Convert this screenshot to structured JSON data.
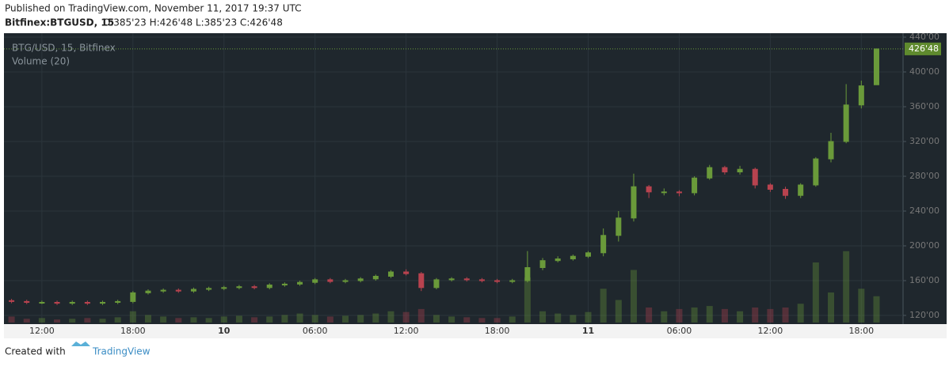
{
  "header": {
    "published": "Published on TradingView.com, November 11, 2017 19:37 UTC",
    "symbol": "Bitfinex:BTGUSD, 15",
    "ohlc": "O:385'23 H:426'48 L:385'23 C:426'48"
  },
  "chart_data": {
    "type": "candlestick",
    "title": "BTG/USD, 15, Bitfinex",
    "price_label": "426'48",
    "up_color": "#6a9a3a",
    "down_color": "#b8434f",
    "x": [
      10,
      11,
      12,
      13,
      14,
      15,
      16,
      17,
      18,
      19,
      20,
      21,
      22,
      23,
      24,
      25,
      26,
      27,
      28,
      29,
      30,
      31,
      32,
      33,
      34,
      35,
      36,
      37,
      38,
      39,
      40,
      41,
      42,
      43,
      44,
      45,
      46,
      47,
      48,
      49,
      50,
      51,
      52,
      53,
      54,
      55,
      56,
      57,
      58,
      59,
      60,
      61,
      62,
      63,
      64,
      65,
      66,
      67
    ],
    "open": [
      137,
      136,
      135,
      135,
      134,
      135,
      134,
      135,
      136,
      146,
      148,
      149,
      148,
      150,
      151,
      152,
      153,
      152,
      155,
      156,
      158,
      161,
      159,
      160,
      162,
      165,
      170,
      168,
      152,
      161,
      162,
      161,
      160,
      159,
      160,
      175,
      183,
      185,
      188,
      192,
      212,
      232,
      268,
      262,
      262,
      261,
      278,
      290,
      285,
      288,
      270,
      265,
      258,
      270,
      300,
      320,
      362,
      385.23
    ],
    "high": [
      139,
      138,
      137,
      137,
      137,
      137,
      137,
      138,
      148,
      150,
      151,
      151,
      152,
      153,
      154,
      155,
      155,
      157,
      158,
      160,
      163,
      163,
      162,
      164,
      167,
      172,
      173,
      170,
      163,
      164,
      164,
      163,
      162,
      162,
      194,
      186,
      188,
      190,
      194,
      220,
      240,
      283,
      270,
      266,
      264,
      280,
      293,
      292,
      292,
      290,
      272,
      268,
      272,
      302,
      330,
      386,
      390,
      426.48
    ],
    "low": [
      134,
      133,
      133,
      132,
      132,
      132,
      132,
      133,
      134,
      144,
      146,
      146,
      146,
      148,
      149,
      150,
      150,
      150,
      153,
      154,
      156,
      157,
      157,
      158,
      160,
      163,
      166,
      148,
      150,
      159,
      159,
      158,
      157,
      157,
      158,
      172,
      181,
      183,
      186,
      188,
      205,
      228,
      255,
      258,
      257,
      258,
      276,
      282,
      282,
      266,
      262,
      254,
      255,
      268,
      296,
      318,
      358,
      385.23
    ],
    "close": [
      136,
      135,
      135,
      134,
      135,
      134,
      135,
      136,
      146,
      148,
      149,
      148,
      150,
      151,
      152,
      153,
      152,
      155,
      156,
      158,
      161,
      159,
      160,
      162,
      165,
      170,
      168,
      152,
      161,
      162,
      161,
      160,
      159,
      160,
      175,
      183,
      185,
      188,
      192,
      212,
      232,
      268,
      262,
      262,
      261,
      278,
      290,
      285,
      288,
      270,
      265,
      258,
      270,
      300,
      320,
      362,
      384,
      426.48
    ],
    "volume": {
      "name": "Volume (20)",
      "ylim": [
        0,
        100
      ],
      "values": [
        8,
        5,
        6,
        4,
        5,
        6,
        5,
        7,
        15,
        10,
        8,
        6,
        7,
        6,
        8,
        9,
        7,
        8,
        10,
        12,
        10,
        8,
        9,
        10,
        12,
        15,
        14,
        18,
        10,
        8,
        7,
        6,
        6,
        8,
        60,
        15,
        12,
        10,
        14,
        45,
        30,
        70,
        20,
        15,
        18,
        20,
        22,
        18,
        15,
        20,
        18,
        20,
        25,
        80,
        40,
        95,
        45,
        35
      ]
    },
    "xlim": [
      9.5,
      68.75
    ],
    "xticks": [
      {
        "value": 12,
        "label": "12:00"
      },
      {
        "value": 18,
        "label": "18:00"
      },
      {
        "value": 24,
        "label": "10"
      },
      {
        "value": 30,
        "label": "06:00"
      },
      {
        "value": 36,
        "label": "12:00"
      },
      {
        "value": 42,
        "label": "18:00"
      },
      {
        "value": 48,
        "label": "11"
      },
      {
        "value": 54,
        "label": "06:00"
      },
      {
        "value": 60,
        "label": "12:00"
      },
      {
        "value": 66,
        "label": "18:00"
      }
    ],
    "ylim": [
      120,
      440
    ],
    "yticks": [
      {
        "value": 120,
        "label": "120'00"
      },
      {
        "value": 160,
        "label": "160'00"
      },
      {
        "value": 200,
        "label": "200'00"
      },
      {
        "value": 240,
        "label": "240'00"
      },
      {
        "value": 280,
        "label": "280'00"
      },
      {
        "value": 320,
        "label": "320'00"
      },
      {
        "value": 360,
        "label": "360'00"
      },
      {
        "value": 400,
        "label": "400'00"
      },
      {
        "value": 440,
        "label": "440'00"
      }
    ],
    "grid": true
  },
  "footer": {
    "created": "Created with",
    "brand": "TradingView"
  }
}
